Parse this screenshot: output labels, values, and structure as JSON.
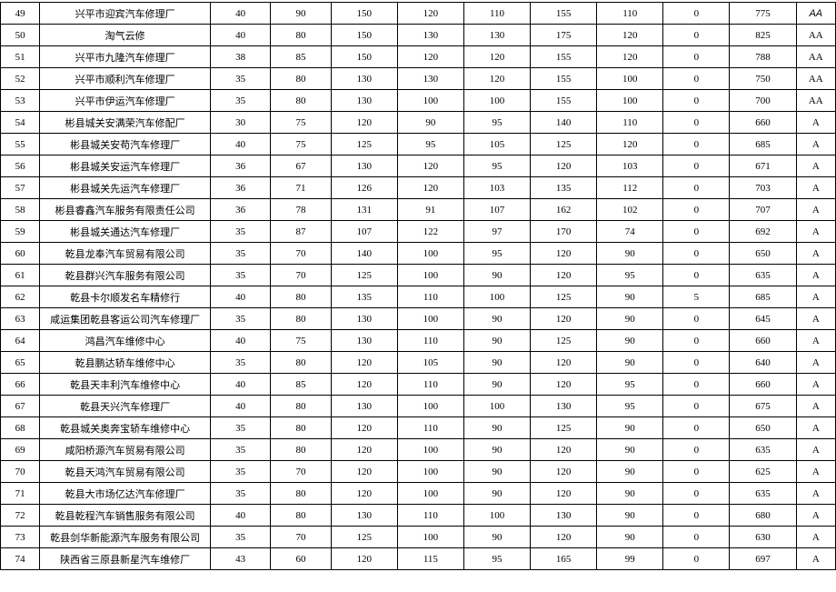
{
  "table": {
    "background_color": "#ffffff",
    "border_color": "#000000",
    "font_family": "SimSun",
    "font_size_pt": 8,
    "column_widths_pct": [
      4.5,
      19.5,
      6.9,
      6.9,
      7.6,
      7.6,
      7.6,
      7.6,
      7.6,
      7.6,
      7.6,
      4.5
    ],
    "rows": [
      {
        "idx": 49,
        "name": "兴平市迎宾汽车修理厂",
        "v": [
          40,
          90,
          150,
          120,
          110,
          155,
          110,
          0,
          775
        ],
        "grade": "AA",
        "grade_italic": true
      },
      {
        "idx": 50,
        "name": "淘气云修",
        "v": [
          40,
          80,
          150,
          130,
          130,
          175,
          120,
          0,
          825
        ],
        "grade": "AA"
      },
      {
        "idx": 51,
        "name": "兴平市九隆汽车修理厂",
        "v": [
          38,
          85,
          150,
          120,
          120,
          155,
          120,
          0,
          788
        ],
        "grade": "AA"
      },
      {
        "idx": 52,
        "name": "兴平市顺利汽车修理厂",
        "v": [
          35,
          80,
          130,
          130,
          120,
          155,
          100,
          0,
          750
        ],
        "grade": "AA"
      },
      {
        "idx": 53,
        "name": "兴平市伊运汽车修理厂",
        "v": [
          35,
          80,
          130,
          100,
          100,
          155,
          100,
          0,
          700
        ],
        "grade": "AA"
      },
      {
        "idx": 54,
        "name": "彬县城关安满荣汽车修配厂",
        "v": [
          30,
          75,
          120,
          90,
          95,
          140,
          110,
          0,
          660
        ],
        "grade": "A"
      },
      {
        "idx": 55,
        "name": "彬县城关安苟汽车修理厂",
        "v": [
          40,
          75,
          125,
          95,
          105,
          125,
          120,
          0,
          685
        ],
        "grade": "A"
      },
      {
        "idx": 56,
        "name": "彬县城关安运汽车修理厂",
        "v": [
          36,
          67,
          130,
          120,
          95,
          120,
          103,
          0,
          671
        ],
        "grade": "A"
      },
      {
        "idx": 57,
        "name": "彬县城关先运汽车修理厂",
        "v": [
          36,
          71,
          126,
          120,
          103,
          135,
          112,
          0,
          703
        ],
        "grade": "A"
      },
      {
        "idx": 58,
        "name": "彬县睿鑫汽车服务有限责任公司",
        "v": [
          36,
          78,
          131,
          91,
          107,
          162,
          102,
          0,
          707
        ],
        "grade": "A"
      },
      {
        "idx": 59,
        "name": "彬县城关通达汽车修理厂",
        "v": [
          35,
          87,
          107,
          122,
          97,
          170,
          74,
          0,
          692
        ],
        "grade": "A"
      },
      {
        "idx": 60,
        "name": "乾县龙奉汽车贸易有限公司",
        "v": [
          35,
          70,
          140,
          100,
          95,
          120,
          90,
          0,
          650
        ],
        "grade": "A"
      },
      {
        "idx": 61,
        "name": "乾县群兴汽车服务有限公司",
        "v": [
          35,
          70,
          125,
          100,
          90,
          120,
          95,
          0,
          635
        ],
        "grade": "A"
      },
      {
        "idx": 62,
        "name": "乾县卡尔顺发名车精修行",
        "v": [
          40,
          80,
          135,
          110,
          100,
          125,
          90,
          5,
          685
        ],
        "grade": "A"
      },
      {
        "idx": 63,
        "name": "咸运集团乾县客运公司汽车修理厂",
        "v": [
          35,
          80,
          130,
          100,
          90,
          120,
          90,
          0,
          645
        ],
        "grade": "A"
      },
      {
        "idx": 64,
        "name": "鸿昌汽车维修中心",
        "v": [
          40,
          75,
          130,
          110,
          90,
          125,
          90,
          0,
          660
        ],
        "grade": "A"
      },
      {
        "idx": 65,
        "name": "乾县鹏达轿车维修中心",
        "v": [
          35,
          80,
          120,
          105,
          90,
          120,
          90,
          0,
          640
        ],
        "grade": "A"
      },
      {
        "idx": 66,
        "name": "乾县天丰利汽车维修中心",
        "v": [
          40,
          85,
          120,
          110,
          90,
          120,
          95,
          0,
          660
        ],
        "grade": "A"
      },
      {
        "idx": 67,
        "name": "乾县天兴汽车修理厂",
        "v": [
          40,
          80,
          130,
          100,
          100,
          130,
          95,
          0,
          675
        ],
        "grade": "A"
      },
      {
        "idx": 68,
        "name": "乾县城关奥奔宝轿车维修中心",
        "v": [
          35,
          80,
          120,
          110,
          90,
          125,
          90,
          0,
          650
        ],
        "grade": "A"
      },
      {
        "idx": 69,
        "name": "咸阳桥源汽车贸易有限公司",
        "v": [
          35,
          80,
          120,
          100,
          90,
          120,
          90,
          0,
          635
        ],
        "grade": "A"
      },
      {
        "idx": 70,
        "name": "乾县天鸿汽车贸易有限公司",
        "v": [
          35,
          70,
          120,
          100,
          90,
          120,
          90,
          0,
          625
        ],
        "grade": "A"
      },
      {
        "idx": 71,
        "name": "乾县大市场亿达汽车修理厂",
        "v": [
          35,
          80,
          120,
          100,
          90,
          120,
          90,
          0,
          635
        ],
        "grade": "A"
      },
      {
        "idx": 72,
        "name": "乾县乾程汽车销售服务有限公司",
        "v": [
          40,
          80,
          130,
          110,
          100,
          130,
          90,
          0,
          680
        ],
        "grade": "A"
      },
      {
        "idx": 73,
        "name": "乾县剑华新能源汽车服务有限公司",
        "v": [
          35,
          70,
          125,
          100,
          90,
          120,
          90,
          0,
          630
        ],
        "grade": "A"
      },
      {
        "idx": 74,
        "name": "陕西省三原县新星汽车维修厂",
        "v": [
          43,
          60,
          120,
          115,
          95,
          165,
          99,
          0,
          697
        ],
        "grade": "A"
      }
    ]
  }
}
